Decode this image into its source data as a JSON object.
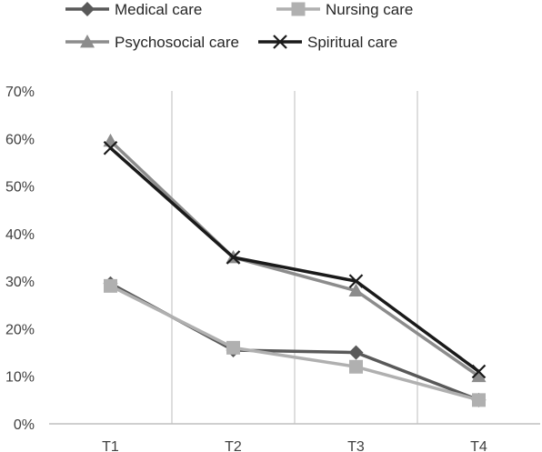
{
  "chart_data": {
    "type": "line",
    "x": [
      "T1",
      "T2",
      "T3",
      "T4"
    ],
    "ylim": [
      0,
      70
    ],
    "yticks": [
      0,
      10,
      20,
      30,
      40,
      50,
      60,
      70
    ],
    "ytick_labels": [
      "0%",
      "10%",
      "20%",
      "30%",
      "40%",
      "50%",
      "60%",
      "70%"
    ],
    "y_unit": "%",
    "grid": "vertical",
    "legend_position": "top",
    "series": [
      {
        "name": "Medical care",
        "values": [
          29.5,
          15.5,
          15,
          5
        ],
        "color": "#595959",
        "marker": "diamond"
      },
      {
        "name": "Nursing care",
        "values": [
          29,
          16,
          12,
          5
        ],
        "color": "#b0b0b0",
        "marker": "square"
      },
      {
        "name": "Psychosocial care",
        "values": [
          59.5,
          35,
          28,
          10
        ],
        "color": "#8c8c8c",
        "marker": "triangle"
      },
      {
        "name": "Spiritual care",
        "values": [
          58,
          35,
          30,
          11
        ],
        "color": "#1a1a1a",
        "marker": "x"
      }
    ]
  }
}
